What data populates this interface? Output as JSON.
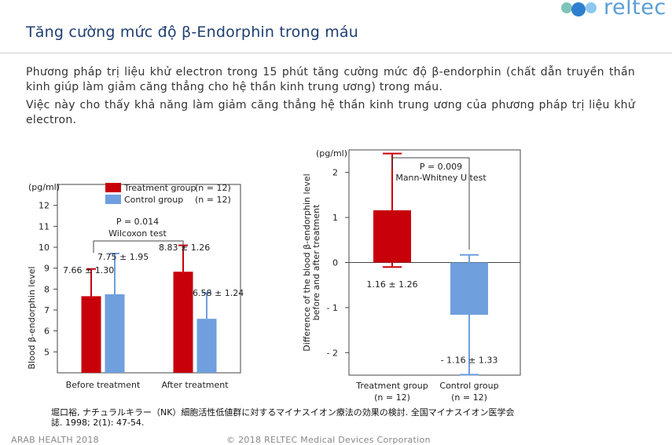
{
  "header": {
    "title": "Tăng cường mức độ β-Endorphin trong máu",
    "logo_text": "reltec"
  },
  "body": {
    "paragraph1": "Phương pháp trị liệu khử electron trong 15 phút tăng cường mức độ β-endorphin (chất dẫn truyền thần kinh giúp làm giảm căng thẳng cho hệ thần kinh trung ương) trong máu.",
    "paragraph2": "Việc này cho thấy khả năng làm giảm căng thẳng hệ thần kinh trung ương của phương pháp trị liệu khử electron."
  },
  "chart_data": [
    {
      "type": "bar",
      "unit_label": "(pg/ml)",
      "ylabel": "Blood β-endorphin level",
      "categories": [
        "Before treatment",
        "After treatment"
      ],
      "ylim": [
        4,
        13
      ],
      "yticks": [
        5,
        6,
        7,
        8,
        9,
        10,
        11,
        12
      ],
      "legend": [
        {
          "name": "Treatment group",
          "n": "(n = 12)",
          "color": "#c8000a"
        },
        {
          "name": "Control group",
          "n": "(n = 12)",
          "color": "#6f9fdd"
        }
      ],
      "series": [
        {
          "name": "Treatment group",
          "color": "#c8000a",
          "values": [
            7.66,
            8.83
          ],
          "errors": [
            1.3,
            1.26
          ],
          "labels": [
            "7.66 ± 1.30",
            "8.83 ± 1.26"
          ]
        },
        {
          "name": "Control group",
          "color": "#6f9fdd",
          "values": [
            7.75,
            6.58
          ],
          "errors": [
            1.95,
            1.24
          ],
          "labels": [
            "7.75 ± 1.95",
            "6.58 ± 1.24"
          ]
        }
      ],
      "annotation": {
        "p": "P = 0.014",
        "test": "Wilcoxon test"
      }
    },
    {
      "type": "bar",
      "unit_label": "(pg/ml)",
      "ylabel_line1": "Difference of the blood β-endorphin level",
      "ylabel_line2": "before and after treatment",
      "categories": [
        "Treatment group",
        "Control group"
      ],
      "category_n": [
        "(n = 12)",
        "(n = 12)"
      ],
      "ylim": [
        -2.5,
        2.5
      ],
      "yticks": [
        2,
        1,
        0,
        -1,
        -2
      ],
      "ytick_labels": [
        "2",
        "1",
        "0",
        "- 1",
        "- 2"
      ],
      "values": [
        1.16,
        -1.16
      ],
      "errors": [
        1.26,
        1.33
      ],
      "colors": [
        "#c8000a",
        "#6f9fdd"
      ],
      "labels": [
        "1.16 ± 1.26",
        "- 1.16 ± 1.33"
      ],
      "annotation": {
        "p": "P = 0.009",
        "test": "Mann-Whitney U test"
      }
    }
  ],
  "reference": "堀口裕, ナチュラルキラー（NK）細胞活性低値群に対するマイナスイオン療法の効果の検討. 全国マイナスイオン医学会誌. 1998; 2(1): 47-54.",
  "footer": {
    "left": "ARAB HEALTH 2018",
    "center": "© 2018 RELTEC Medical Devices Corporation"
  }
}
